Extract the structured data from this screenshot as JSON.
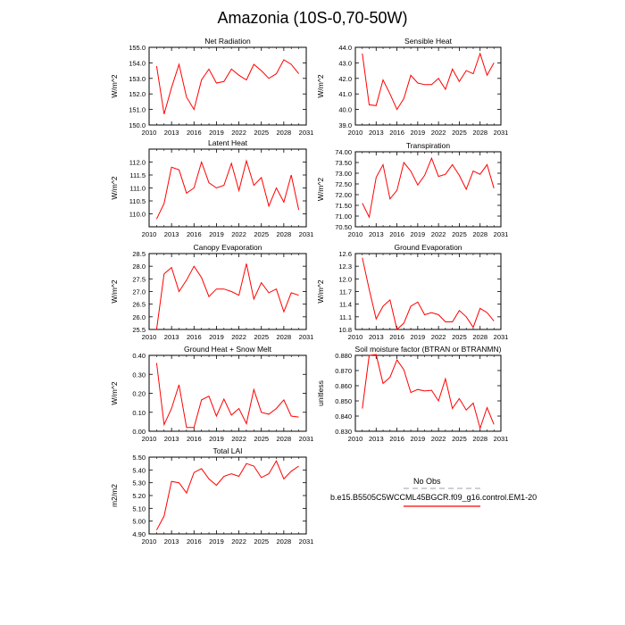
{
  "title": "Amazonia (10S-0,70-50W)",
  "colors": {
    "line": "#ff0000",
    "obs_line": "#b0b0c8",
    "axis": "#000000"
  },
  "legend": {
    "obs_label": "No Obs",
    "case_label": "b.e15.B5505C5WCCML45BGCR.f09_g16.control.EM1-20"
  },
  "chart_data": [
    {
      "type": "line",
      "title": "Net Radiation",
      "ylabel": "W/m^2",
      "xlim": [
        2010,
        2031
      ],
      "xticks": [
        2010,
        2013,
        2016,
        2019,
        2022,
        2025,
        2028,
        2031
      ],
      "ylim": [
        150.0,
        155.0
      ],
      "yticks": [
        "150.0",
        "151.0",
        "152.0",
        "153.0",
        "154.0",
        "155.0"
      ],
      "x": [
        2011,
        2012,
        2013,
        2014,
        2015,
        2016,
        2017,
        2018,
        2019,
        2020,
        2021,
        2022,
        2023,
        2024,
        2025,
        2026,
        2027,
        2028,
        2029,
        2030
      ],
      "values": [
        153.8,
        150.7,
        152.4,
        153.9,
        151.8,
        151.0,
        152.9,
        153.6,
        152.7,
        152.8,
        153.6,
        153.2,
        152.9,
        153.9,
        153.5,
        153.0,
        153.3,
        154.2,
        153.9,
        153.3
      ]
    },
    {
      "type": "line",
      "title": "Sensible Heat",
      "ylabel": "W/m^2",
      "xlim": [
        2010,
        2031
      ],
      "xticks": [
        2010,
        2013,
        2016,
        2019,
        2022,
        2025,
        2028,
        2031
      ],
      "ylim": [
        39.0,
        44.0
      ],
      "yticks": [
        "39.0",
        "40.0",
        "41.0",
        "42.0",
        "43.0",
        "44.0"
      ],
      "x": [
        2011,
        2012,
        2013,
        2014,
        2015,
        2016,
        2017,
        2018,
        2019,
        2020,
        2021,
        2022,
        2023,
        2024,
        2025,
        2026,
        2027,
        2028,
        2029,
        2030
      ],
      "values": [
        43.6,
        40.3,
        40.25,
        41.9,
        41.0,
        40.0,
        40.7,
        42.2,
        41.7,
        41.6,
        41.6,
        42.0,
        41.3,
        42.6,
        41.8,
        42.5,
        42.3,
        43.6,
        42.2,
        43.0
      ]
    },
    {
      "type": "line",
      "title": "Latent Heat",
      "ylabel": "W/m^2",
      "xlim": [
        2010,
        2031
      ],
      "xticks": [
        2010,
        2013,
        2016,
        2019,
        2022,
        2025,
        2028,
        2031
      ],
      "ylim": [
        109.5,
        112.5
      ],
      "yticks": [
        "110.0",
        "110.5",
        "111.0",
        "111.5",
        "112.0"
      ],
      "x": [
        2011,
        2012,
        2013,
        2014,
        2015,
        2016,
        2017,
        2018,
        2019,
        2020,
        2021,
        2022,
        2023,
        2024,
        2025,
        2026,
        2027,
        2028,
        2029,
        2030
      ],
      "values": [
        109.8,
        110.4,
        111.8,
        111.7,
        110.8,
        111.0,
        112.0,
        111.2,
        111.0,
        111.1,
        111.95,
        110.9,
        112.05,
        111.1,
        111.4,
        110.3,
        111.0,
        110.45,
        111.5,
        110.15
      ]
    },
    {
      "type": "line",
      "title": "Transpiration",
      "ylabel": "W/m^2",
      "xlim": [
        2010,
        2031
      ],
      "xticks": [
        2010,
        2013,
        2016,
        2019,
        2022,
        2025,
        2028,
        2031
      ],
      "ylim": [
        70.5,
        74.0
      ],
      "yticks": [
        "70.50",
        "71.00",
        "71.50",
        "72.00",
        "72.50",
        "73.00",
        "73.50",
        "74.00"
      ],
      "x": [
        2011,
        2012,
        2013,
        2014,
        2015,
        2016,
        2017,
        2018,
        2019,
        2020,
        2021,
        2022,
        2023,
        2024,
        2025,
        2026,
        2027,
        2028,
        2029,
        2030
      ],
      "values": [
        71.6,
        70.95,
        72.8,
        73.4,
        71.8,
        72.2,
        73.5,
        73.1,
        72.45,
        72.9,
        73.7,
        72.85,
        72.95,
        73.4,
        72.9,
        72.25,
        73.1,
        72.95,
        73.4,
        72.3
      ]
    },
    {
      "type": "line",
      "title": "Canopy Evaporation",
      "ylabel": "W/m^2",
      "xlim": [
        2010,
        2031
      ],
      "xticks": [
        2010,
        2013,
        2016,
        2019,
        2022,
        2025,
        2028,
        2031
      ],
      "ylim": [
        25.5,
        28.5
      ],
      "yticks": [
        "25.5",
        "26.0",
        "26.5",
        "27.0",
        "27.5",
        "28.0",
        "28.5"
      ],
      "x": [
        2011,
        2012,
        2013,
        2014,
        2015,
        2016,
        2017,
        2018,
        2019,
        2020,
        2021,
        2022,
        2023,
        2024,
        2025,
        2026,
        2027,
        2028,
        2029,
        2030
      ],
      "values": [
        25.5,
        27.7,
        27.95,
        27.0,
        27.45,
        28.0,
        27.55,
        26.8,
        27.1,
        27.1,
        27.0,
        26.85,
        28.1,
        26.7,
        27.35,
        26.95,
        27.1,
        26.2,
        26.95,
        26.85
      ]
    },
    {
      "type": "line",
      "title": "Ground Evaporation",
      "ylabel": "W/m^2",
      "xlim": [
        2010,
        2031
      ],
      "xticks": [
        2010,
        2013,
        2016,
        2019,
        2022,
        2025,
        2028,
        2031
      ],
      "ylim": [
        10.8,
        12.6
      ],
      "yticks": [
        "10.8",
        "11.1",
        "11.4",
        "11.7",
        "12.0",
        "12.3",
        "12.6"
      ],
      "x": [
        2011,
        2012,
        2013,
        2014,
        2015,
        2016,
        2017,
        2018,
        2019,
        2020,
        2021,
        2022,
        2023,
        2024,
        2025,
        2026,
        2027,
        2028,
        2029,
        2030
      ],
      "values": [
        12.5,
        11.75,
        11.05,
        11.35,
        11.5,
        10.8,
        10.95,
        11.35,
        11.45,
        11.15,
        11.2,
        11.15,
        10.98,
        10.98,
        11.25,
        11.1,
        10.85,
        11.3,
        11.2,
        11.0
      ]
    },
    {
      "type": "line",
      "title": "Ground Heat + Snow Melt",
      "ylabel": "W/m^2",
      "xlim": [
        2010,
        2031
      ],
      "xticks": [
        2010,
        2013,
        2016,
        2019,
        2022,
        2025,
        2028,
        2031
      ],
      "ylim": [
        0.0,
        0.4
      ],
      "yticks": [
        "0.00",
        "0.10",
        "0.20",
        "0.30",
        "0.40"
      ],
      "x": [
        2011,
        2012,
        2013,
        2014,
        2015,
        2016,
        2017,
        2018,
        2019,
        2020,
        2021,
        2022,
        2023,
        2024,
        2025,
        2026,
        2027,
        2028,
        2029,
        2030
      ],
      "values": [
        0.36,
        0.035,
        0.12,
        0.245,
        0.02,
        0.02,
        0.165,
        0.185,
        0.08,
        0.17,
        0.085,
        0.12,
        0.04,
        0.22,
        0.1,
        0.09,
        0.12,
        0.165,
        0.08,
        0.075
      ]
    },
    {
      "type": "line",
      "title": "Soil moisture factor (BTRAN or BTRANMN)",
      "ylabel": "unitless",
      "xlim": [
        2010,
        2031
      ],
      "xticks": [
        2010,
        2013,
        2016,
        2019,
        2022,
        2025,
        2028,
        2031
      ],
      "ylim": [
        0.83,
        0.88
      ],
      "yticks": [
        "0.830",
        "0.840",
        "0.850",
        "0.860",
        "0.870",
        "0.880"
      ],
      "x": [
        2011,
        2012,
        2013,
        2014,
        2015,
        2016,
        2017,
        2018,
        2019,
        2020,
        2021,
        2022,
        2023,
        2024,
        2025,
        2026,
        2027,
        2028,
        2029,
        2030
      ],
      "values": [
        0.845,
        0.88,
        0.8805,
        0.8615,
        0.8655,
        0.877,
        0.8705,
        0.8555,
        0.8575,
        0.8565,
        0.857,
        0.85,
        0.8645,
        0.845,
        0.8515,
        0.844,
        0.8485,
        0.832,
        0.8455,
        0.8345
      ]
    },
    {
      "type": "line",
      "title": "Total LAI",
      "ylabel": "m2/m2",
      "xlim": [
        2010,
        2031
      ],
      "xticks": [
        2010,
        2013,
        2016,
        2019,
        2022,
        2025,
        2028,
        2031
      ],
      "ylim": [
        4.9,
        5.5
      ],
      "yticks": [
        "4.90",
        "5.00",
        "5.10",
        "5.20",
        "5.30",
        "5.40",
        "5.50"
      ],
      "x": [
        2011,
        2012,
        2013,
        2014,
        2015,
        2016,
        2017,
        2018,
        2019,
        2020,
        2021,
        2022,
        2023,
        2024,
        2025,
        2026,
        2027,
        2028,
        2029,
        2030
      ],
      "values": [
        4.93,
        5.04,
        5.31,
        5.3,
        5.22,
        5.38,
        5.41,
        5.33,
        5.28,
        5.35,
        5.37,
        5.35,
        5.45,
        5.43,
        5.34,
        5.37,
        5.47,
        5.33,
        5.39,
        5.43
      ]
    }
  ]
}
